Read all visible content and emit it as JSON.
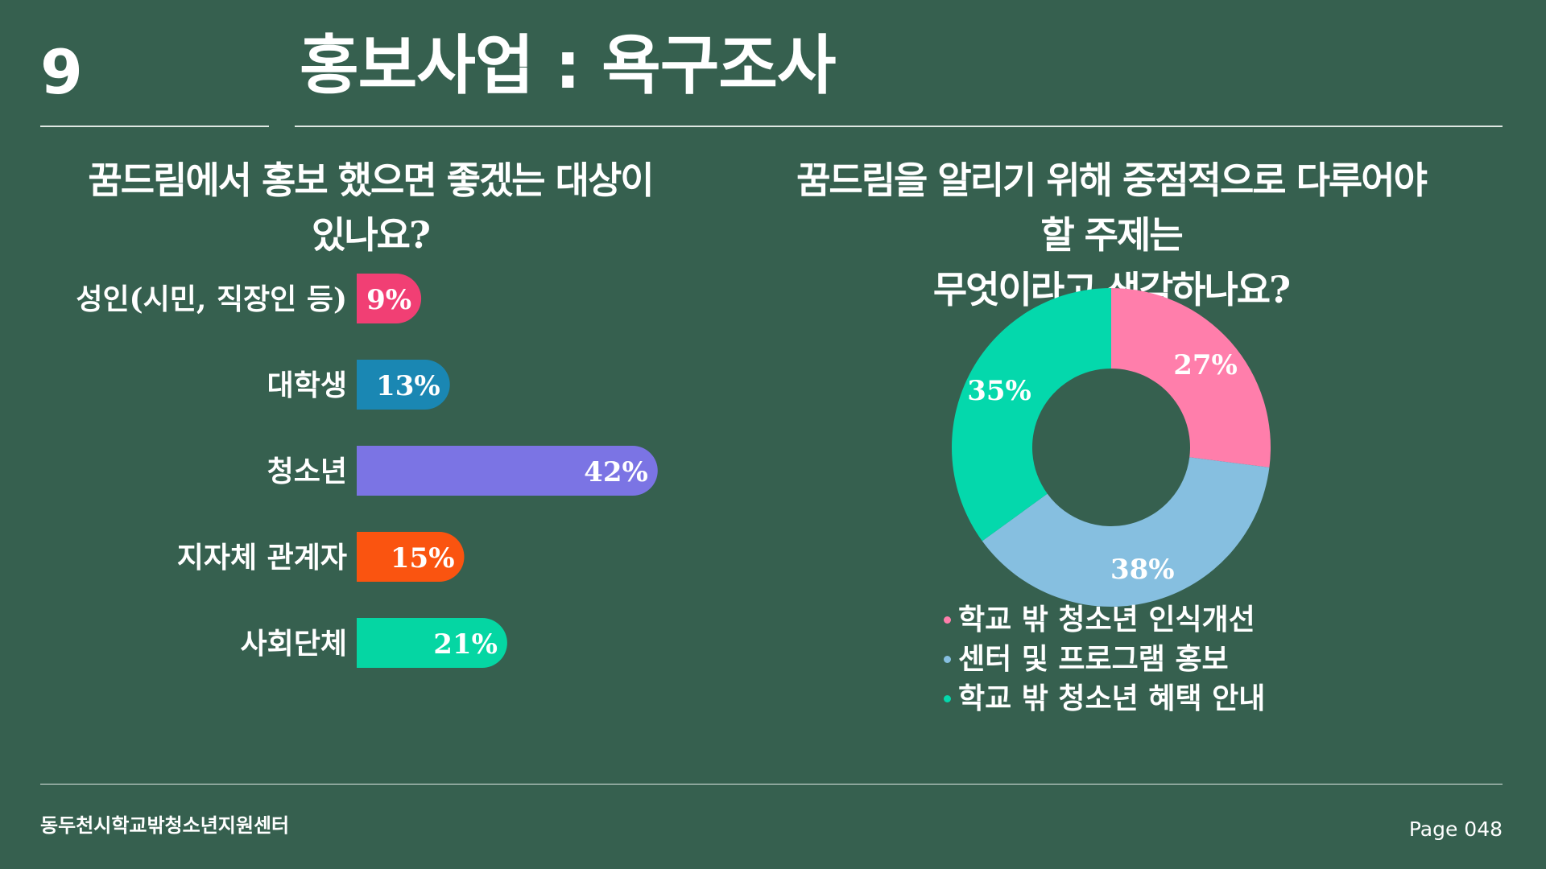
{
  "header": {
    "page_number": "9",
    "title": "홍보사업 : 욕구조사"
  },
  "left_question": "꿈드림에서 홍보 했으면 좋겠는 대상이 있나요?",
  "right_question": {
    "line1": "꿈드림을 알리기 위해 중점적으로 다루어야 할 주제는",
    "line2": "무엇이라고 생각하나요?"
  },
  "chart_data": [
    {
      "type": "bar",
      "orientation": "horizontal",
      "title": "꿈드림에서 홍보 했으면 좋겠는 대상이 있나요?",
      "categories": [
        "성인(시민, 직장인 등)",
        "대학생",
        "청소년",
        "지자체 관계자",
        "사회단체"
      ],
      "values": [
        9,
        13,
        42,
        15,
        21
      ],
      "value_labels": [
        "9%",
        "13%",
        "42%",
        "15%",
        "21%"
      ],
      "colors": [
        "#f13f74",
        "#1a87b3",
        "#7b74e4",
        "#fa5410",
        "#05d6a3"
      ],
      "unit": "%",
      "grid": false,
      "legend": "none"
    },
    {
      "type": "pie",
      "variant": "donut",
      "title": "꿈드림을 알리기 위해 중점적으로 다루어야 할 주제는 무엇이라고 생각하나요?",
      "categories": [
        "학교 밖 청소년 인식개선",
        "센터 및 프로그램 홍보",
        "학교 밖 청소년 혜택 안내"
      ],
      "values": [
        27,
        38,
        35
      ],
      "value_labels": [
        "27%",
        "38%",
        "35%"
      ],
      "colors": [
        "#ff7eab",
        "#86bfe0",
        "#04d8ac"
      ],
      "unit": "%",
      "legend": "bottom"
    }
  ],
  "footer": {
    "organization": "동두천시학교밖청소년지원센터",
    "page": "Page 048"
  }
}
